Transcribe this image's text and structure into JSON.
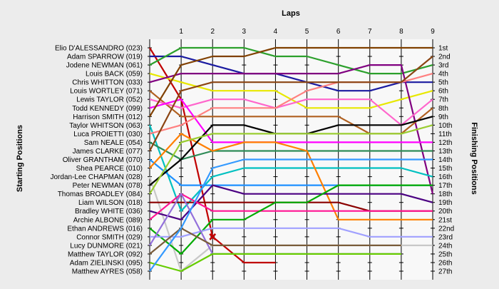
{
  "chart_data": {
    "type": "line",
    "title": "",
    "xlabel": "Laps",
    "ylabel": "Starting Positions",
    "y2label": "Finishing Positions",
    "x": [
      0,
      1,
      2,
      3,
      4,
      5,
      6,
      7,
      8,
      9
    ],
    "x_tick_labels": [
      "1",
      "2",
      "3",
      "4",
      "5",
      "6",
      "7",
      "8",
      "9"
    ],
    "y_range": [
      1,
      27
    ],
    "y_inverted": true,
    "finishing_labels": [
      "1st",
      "2nd",
      "3rd",
      "4th",
      "5th",
      "6th",
      "7th",
      "8th",
      "9th",
      "10th",
      "11th",
      "12th",
      "13th",
      "14th",
      "15th",
      "16th",
      "17th",
      "18th",
      "19th",
      "20th",
      "21st",
      "22nd",
      "23rd",
      "24th",
      "25th",
      "26th",
      "27th"
    ],
    "series": [
      {
        "name": "Elio D'ALESSANDRO (023)",
        "color": "#c00000",
        "values": [
          1,
          7,
          23,
          26,
          26,
          null,
          null,
          null,
          null,
          null
        ]
      },
      {
        "name": "Adam SPARROW (019)",
        "color": "#1a1aa0",
        "values": [
          2,
          2,
          3,
          4,
          4,
          5,
          6,
          6,
          5,
          5
        ]
      },
      {
        "name": "Jodene NEWMAN (061)",
        "color": "#2ca02c",
        "values": [
          3,
          1,
          1,
          1,
          2,
          2,
          3,
          4,
          4,
          3
        ]
      },
      {
        "name": "Louis BACK (059)",
        "color": "#e8e800",
        "values": [
          4,
          5,
          6,
          6,
          6,
          8,
          8,
          8,
          7,
          6
        ]
      },
      {
        "name": "Chris WHITTON (033)",
        "color": "#800080",
        "values": [
          5,
          4,
          4,
          4,
          4,
          4,
          4,
          3,
          3,
          18
        ]
      },
      {
        "name": "Louis WORTLEY (071)",
        "color": "#b06020",
        "values": [
          6,
          9,
          9,
          9,
          9,
          9,
          9,
          11,
          11,
          8
        ]
      },
      {
        "name": "Lewis TAYLOR (052)",
        "color": "#ff66cc",
        "values": [
          7,
          8,
          7,
          7,
          8,
          7,
          7,
          7,
          10,
          7
        ]
      },
      {
        "name": "Todd KENNEDY (099)",
        "color": "#ff00ff",
        "values": [
          8,
          7,
          12,
          12,
          12,
          12,
          12,
          12,
          12,
          12
        ]
      },
      {
        "name": "Harrison SMITH (012)",
        "color": "#804000",
        "values": [
          9,
          3,
          2,
          2,
          1,
          1,
          1,
          1,
          1,
          1
        ]
      },
      {
        "name": "Taylor WHITSON (063)",
        "color": "#00c0c0",
        "values": [
          10,
          20,
          16,
          15,
          15,
          15,
          15,
          15,
          15,
          16
        ]
      },
      {
        "name": "Luca PROIETTI (030)",
        "color": "#ff8080",
        "values": [
          11,
          10,
          8,
          8,
          8,
          6,
          5,
          5,
          5,
          4
        ]
      },
      {
        "name": "Sam NEALE (054)",
        "color": "#2e8b57",
        "values": [
          12,
          14,
          13,
          13,
          13,
          13,
          13,
          13,
          13,
          13
        ]
      },
      {
        "name": "James CLARKE (077)",
        "color": "#8b4513",
        "values": [
          13,
          6,
          5,
          5,
          5,
          5,
          5,
          5,
          5,
          2
        ]
      },
      {
        "name": "Oliver GRANTHAM (070)",
        "color": "#1e90ff",
        "values": [
          14,
          17,
          17,
          17,
          17,
          17,
          17,
          17,
          17,
          17
        ]
      },
      {
        "name": "Shea PEARCE (010)",
        "color": "#ff7f00",
        "values": [
          15,
          11,
          13,
          12,
          12,
          13,
          21,
          21,
          21,
          21
        ]
      },
      {
        "name": "Jordan-Lee CHAPMAN (028)",
        "color": "#c8c8c8",
        "values": [
          16,
          27,
          24,
          24,
          24,
          24,
          24,
          24,
          24,
          24
        ]
      },
      {
        "name": "Peter NEWMAN (078)",
        "color": "#000000",
        "values": [
          17,
          14,
          10,
          10,
          11,
          11,
          10,
          10,
          10,
          9
        ]
      },
      {
        "name": "Thomas BROADLEY (084)",
        "color": "#9acd32",
        "values": [
          18,
          12,
          11,
          11,
          11,
          11,
          11,
          11,
          11,
          10
        ]
      },
      {
        "name": "Liam WILSON (018)",
        "color": "#8b0000",
        "values": [
          19,
          19,
          19,
          19,
          19,
          19,
          19,
          20,
          20,
          20
        ]
      },
      {
        "name": "Bradley WHITE (036)",
        "color": "#4b0082",
        "values": [
          20,
          21,
          17,
          18,
          18,
          18,
          18,
          18,
          18,
          19
        ]
      },
      {
        "name": "Archie ALBONE (089)",
        "color": "#ff1493",
        "values": [
          21,
          18,
          20,
          20,
          20,
          20,
          20,
          20,
          20,
          20
        ]
      },
      {
        "name": "Ethan ANDREWS (016)",
        "color": "#00aa00",
        "values": [
          22,
          25,
          21,
          21,
          19,
          19,
          17,
          17,
          17,
          17
        ]
      },
      {
        "name": "Connor SMITH (029)",
        "color": "#a0a0ff",
        "values": [
          23,
          23,
          22,
          22,
          22,
          22,
          22,
          23,
          23,
          23
        ]
      },
      {
        "name": "Lucy DUNMORE (021)",
        "color": "#9370db",
        "values": [
          24,
          18,
          25,
          25,
          25,
          25,
          25,
          25,
          25,
          null
        ]
      },
      {
        "name": "Matthew TAYLOR (092)",
        "color": "#7a5c3a",
        "values": [
          25,
          22,
          24,
          24,
          24,
          24,
          24,
          24,
          24,
          null
        ]
      },
      {
        "name": "Adam ZIELINSKI (095)",
        "color": "#66cc00",
        "values": [
          26,
          27,
          25,
          25,
          25,
          25,
          25,
          25,
          25,
          null
        ]
      },
      {
        "name": "Matthew AYRES (058)",
        "color": "#3399ff",
        "values": [
          27,
          22,
          15,
          14,
          14,
          14,
          14,
          14,
          14,
          14
        ]
      }
    ],
    "annotations": [
      {
        "type": "retired-marker",
        "symbol": "x",
        "x": 2,
        "y": 23,
        "color": "#c00000"
      }
    ]
  }
}
